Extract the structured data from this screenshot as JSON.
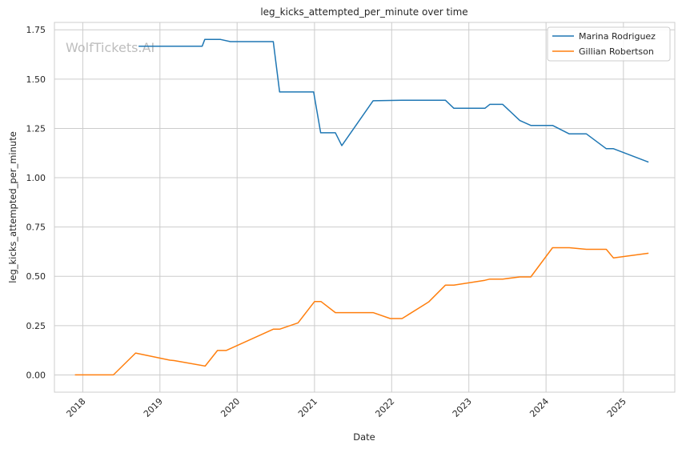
{
  "chart_data": {
    "type": "line",
    "title": "leg_kicks_attempted_per_minute over time",
    "xlabel": "Date",
    "ylabel": "leg_kicks_attempted_per_minute",
    "watermark": "WolfTickets.AI",
    "xlim": [
      "2017-08-20",
      "2025-09-01"
    ],
    "ylim": [
      -0.0875,
      1.7875
    ],
    "x_ticks": [
      "2018-01-01",
      "2019-01-01",
      "2020-01-01",
      "2021-01-01",
      "2022-01-01",
      "2023-01-01",
      "2024-01-01",
      "2025-01-01"
    ],
    "x_tick_labels": [
      "2018",
      "2019",
      "2020",
      "2021",
      "2022",
      "2023",
      "2024",
      "2025"
    ],
    "y_ticks": [
      0.0,
      0.25,
      0.5,
      0.75,
      1.0,
      1.25,
      1.5,
      1.75
    ],
    "y_tick_labels": [
      "0.00",
      "0.25",
      "0.50",
      "0.75",
      "1.00",
      "1.25",
      "1.50",
      "1.75"
    ],
    "grid": true,
    "legend_position": "top-right",
    "series": [
      {
        "name": "Marina Rodriguez",
        "color": "#1f77b4",
        "x": [
          "2018-09-22",
          "2019-07-20",
          "2019-08-01",
          "2019-10-15",
          "2019-11-30",
          "2020-06-20",
          "2020-07-20",
          "2020-12-28",
          "2021-01-30",
          "2021-04-10",
          "2021-05-10",
          "2021-10-05",
          "2022-02-19",
          "2022-09-12",
          "2022-10-22",
          "2023-03-18",
          "2023-04-10",
          "2023-06-10",
          "2023-08-30",
          "2023-10-21",
          "2024-02-01",
          "2024-04-20",
          "2024-07-10",
          "2024-10-12",
          "2024-11-15",
          "2025-04-30"
        ],
        "y": [
          1.667,
          1.667,
          1.701,
          1.701,
          1.69,
          1.69,
          1.435,
          1.435,
          1.228,
          1.228,
          1.163,
          1.39,
          1.393,
          1.393,
          1.352,
          1.352,
          1.372,
          1.372,
          1.29,
          1.265,
          1.265,
          1.222,
          1.222,
          1.147,
          1.147,
          1.079
        ]
      },
      {
        "name": "Gillian Robertson",
        "color": "#ff7f0e",
        "x": [
          "2017-11-25",
          "2018-05-26",
          "2018-09-08",
          "2019-02-17",
          "2019-03-09",
          "2019-08-03",
          "2019-09-30",
          "2019-11-10",
          "2020-06-20",
          "2020-07-20",
          "2020-10-15",
          "2021-01-01",
          "2021-02-01",
          "2021-04-10",
          "2021-10-05",
          "2021-12-25",
          "2022-02-19",
          "2022-06-25",
          "2022-09-12",
          "2022-10-22",
          "2023-03-18",
          "2023-04-10",
          "2023-06-10",
          "2023-08-30",
          "2023-10-21",
          "2024-02-01",
          "2024-04-20",
          "2024-07-10",
          "2024-10-12",
          "2024-11-15",
          "2025-04-30"
        ],
        "y": [
          0.0,
          0.0,
          0.111,
          0.075,
          0.073,
          0.045,
          0.124,
          0.124,
          0.232,
          0.232,
          0.264,
          0.372,
          0.372,
          0.316,
          0.316,
          0.286,
          0.286,
          0.37,
          0.455,
          0.455,
          0.48,
          0.486,
          0.486,
          0.497,
          0.497,
          0.645,
          0.645,
          0.637,
          0.637,
          0.593,
          0.617
        ]
      }
    ]
  }
}
